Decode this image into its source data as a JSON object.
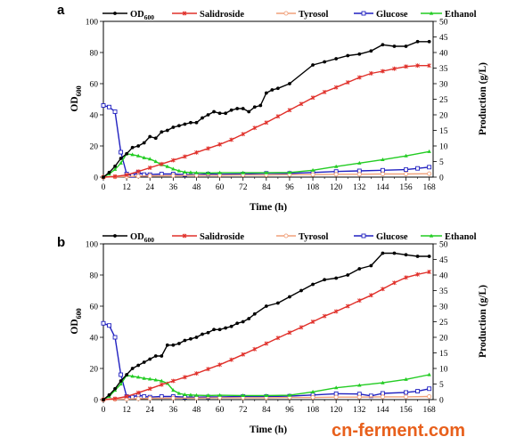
{
  "watermark": {
    "text": "cn-ferment.com",
    "color_main": "#e8601c"
  },
  "colors": {
    "OD": "#000000",
    "Salidroside": "#e0302a",
    "Tyrosol": "#f0a07a",
    "Glucose": "#2020c0",
    "Ethanol": "#22cc22"
  },
  "chart_data": [
    {
      "type": "line",
      "panel": "a",
      "xlabel": "Time (h)",
      "ylabel_left": "OD600",
      "ylabel_right": "Production (g/L)",
      "x_ticks": [
        "0",
        "12",
        "24",
        "36",
        "48",
        "60",
        "72",
        "84",
        "96",
        "108",
        "120",
        "132",
        "144",
        "156",
        "168"
      ],
      "y_left_ticks": [
        "0",
        "20",
        "40",
        "60",
        "80",
        "100"
      ],
      "y_right_ticks": [
        "0",
        "5",
        "10",
        "15",
        "20",
        "25",
        "30",
        "35",
        "40",
        "45",
        "50"
      ],
      "xlim": [
        0,
        170
      ],
      "ylim_left": [
        0,
        100
      ],
      "ylim_right": [
        0,
        50
      ],
      "legend_position": "top",
      "series": [
        {
          "name": "OD",
          "name_sub": "600",
          "axis": "left",
          "marker": "circle",
          "color": "#000000",
          "x": [
            0,
            3,
            6,
            9,
            12,
            15,
            18,
            21,
            24,
            27,
            30,
            33,
            36,
            39,
            42,
            45,
            48,
            51,
            54,
            57,
            60,
            63,
            66,
            69,
            72,
            75,
            78,
            81,
            84,
            87,
            90,
            96,
            108,
            114,
            120,
            126,
            132,
            138,
            144,
            150,
            156,
            162,
            168
          ],
          "y": [
            0,
            3,
            7,
            12,
            15,
            19,
            20,
            22,
            26,
            25,
            29,
            30,
            32,
            33,
            34,
            35,
            35,
            38,
            40,
            42,
            41,
            41,
            43,
            44,
            44,
            42,
            45,
            46,
            54,
            56,
            57,
            60,
            72,
            74,
            76,
            78,
            79,
            81,
            85,
            84,
            84,
            87,
            87
          ]
        },
        {
          "name": "Salidroside",
          "axis": "right",
          "marker": "star",
          "color": "#e0302a",
          "x": [
            0,
            6,
            12,
            18,
            24,
            30,
            36,
            42,
            48,
            54,
            60,
            66,
            72,
            78,
            84,
            90,
            96,
            102,
            108,
            114,
            120,
            126,
            132,
            138,
            144,
            150,
            156,
            162,
            168
          ],
          "y": [
            0,
            0.2,
            0.7,
            1.8,
            3.0,
            4.2,
            5.4,
            6.6,
            7.9,
            9.2,
            10.5,
            12.0,
            13.8,
            15.8,
            17.5,
            19.5,
            21.5,
            23.5,
            25.5,
            27.3,
            28.8,
            30.4,
            32.0,
            33.3,
            34.0,
            34.8,
            35.5,
            35.8,
            35.8
          ]
        },
        {
          "name": "Tyrosol",
          "axis": "right",
          "marker": "circle-open",
          "color": "#f0a07a",
          "x": [
            0,
            6,
            12,
            18,
            24,
            36,
            48,
            60,
            72,
            84,
            96,
            108,
            120,
            132,
            144,
            156,
            168
          ],
          "y": [
            0,
            0.1,
            0.2,
            0.3,
            0.4,
            0.5,
            0.6,
            0.6,
            0.7,
            0.7,
            0.8,
            0.8,
            0.9,
            0.9,
            1.0,
            1.0,
            1.1
          ]
        },
        {
          "name": "Glucose",
          "axis": "right",
          "marker": "square-open",
          "color": "#2020c0",
          "x": [
            0,
            3,
            6,
            9,
            12,
            15,
            18,
            21,
            24,
            30,
            36,
            42,
            48,
            54,
            60,
            72,
            84,
            96,
            108,
            120,
            132,
            144,
            156,
            162,
            168
          ],
          "y": [
            23,
            22.5,
            21,
            8,
            1,
            0.5,
            1.5,
            0.8,
            0.8,
            1.0,
            1.0,
            0.8,
            0.8,
            1.0,
            0.9,
            1.0,
            1.2,
            1.2,
            1.5,
            1.8,
            2.0,
            2.2,
            2.4,
            2.8,
            3.2
          ]
        },
        {
          "name": "Ethanol",
          "axis": "right",
          "marker": "triangle",
          "color": "#22cc22",
          "x": [
            0,
            3,
            6,
            9,
            12,
            15,
            18,
            21,
            24,
            27,
            30,
            33,
            36,
            39,
            42,
            45,
            48,
            54,
            60,
            72,
            84,
            96,
            108,
            120,
            132,
            144,
            156,
            168
          ],
          "y": [
            0,
            1,
            2.5,
            4.5,
            7.5,
            7.2,
            6.8,
            6.2,
            5.8,
            5.0,
            4.0,
            3.4,
            2.6,
            2.0,
            1.6,
            1.5,
            1.4,
            1.3,
            1.4,
            1.4,
            1.4,
            1.5,
            2.2,
            3.4,
            4.5,
            5.6,
            6.8,
            8.2
          ]
        }
      ]
    },
    {
      "type": "line",
      "panel": "b",
      "xlabel": "Time (h)",
      "ylabel_left": "OD600",
      "ylabel_right": "Production (g/L)",
      "x_ticks": [
        "0",
        "12",
        "24",
        "36",
        "48",
        "60",
        "72",
        "84",
        "96",
        "108",
        "120",
        "132",
        "144",
        "156",
        "168"
      ],
      "y_left_ticks": [
        "0",
        "20",
        "40",
        "60",
        "80",
        "100"
      ],
      "y_right_ticks": [
        "0",
        "5",
        "10",
        "15",
        "20",
        "25",
        "30",
        "35",
        "40",
        "45",
        "50"
      ],
      "xlim": [
        0,
        170
      ],
      "ylim_left": [
        0,
        100
      ],
      "ylim_right": [
        0,
        50
      ],
      "legend_position": "top",
      "series": [
        {
          "name": "OD",
          "name_sub": "600",
          "axis": "left",
          "marker": "circle",
          "color": "#000000",
          "x": [
            0,
            3,
            6,
            9,
            12,
            15,
            18,
            21,
            24,
            27,
            30,
            33,
            36,
            39,
            42,
            45,
            48,
            51,
            54,
            57,
            60,
            63,
            66,
            69,
            72,
            75,
            78,
            84,
            90,
            96,
            102,
            108,
            114,
            120,
            126,
            132,
            138,
            144,
            150,
            156,
            162,
            168
          ],
          "y": [
            0,
            3,
            7,
            12,
            16,
            20,
            22,
            24,
            26,
            28,
            28,
            35,
            35,
            36,
            38,
            39,
            40,
            42,
            43,
            45,
            45,
            46,
            47,
            49,
            50,
            52,
            55,
            60,
            62,
            66,
            70,
            74,
            77,
            78,
            80,
            84,
            86,
            94,
            94,
            93,
            92,
            92
          ]
        },
        {
          "name": "Salidroside",
          "axis": "right",
          "marker": "star",
          "color": "#e0302a",
          "x": [
            0,
            6,
            12,
            18,
            24,
            30,
            36,
            42,
            48,
            54,
            60,
            66,
            72,
            78,
            84,
            90,
            96,
            102,
            108,
            114,
            120,
            126,
            132,
            138,
            144,
            150,
            156,
            162,
            168
          ],
          "y": [
            0,
            0.3,
            1.0,
            2.2,
            3.5,
            4.8,
            6.0,
            7.2,
            8.4,
            9.8,
            11.2,
            12.8,
            14.5,
            16.2,
            18.0,
            19.8,
            21.5,
            23.2,
            25.0,
            26.8,
            28.3,
            30.0,
            31.8,
            33.5,
            35.5,
            37.5,
            39.2,
            40.2,
            41.0
          ]
        },
        {
          "name": "Tyrosol",
          "axis": "right",
          "marker": "circle-open",
          "color": "#f0a07a",
          "x": [
            0,
            6,
            12,
            18,
            24,
            36,
            48,
            60,
            72,
            84,
            96,
            108,
            120,
            132,
            144,
            156,
            168
          ],
          "y": [
            0,
            0.1,
            0.2,
            0.3,
            0.4,
            0.5,
            0.5,
            0.6,
            0.6,
            0.6,
            0.7,
            0.7,
            0.8,
            0.8,
            0.9,
            0.9,
            1.0
          ]
        },
        {
          "name": "Glucose",
          "axis": "right",
          "marker": "square-open",
          "color": "#2020c0",
          "x": [
            0,
            3,
            6,
            9,
            12,
            15,
            18,
            21,
            24,
            30,
            36,
            42,
            48,
            54,
            60,
            72,
            84,
            96,
            108,
            120,
            132,
            138,
            144,
            156,
            162,
            168
          ],
          "y": [
            24.5,
            23.8,
            20,
            8,
            1,
            0.8,
            1.5,
            1.0,
            0.8,
            1.0,
            1.0,
            0.8,
            0.8,
            0.9,
            0.9,
            1.0,
            1.0,
            1.1,
            1.5,
            1.9,
            1.8,
            1.2,
            2.0,
            2.3,
            2.7,
            3.5
          ]
        },
        {
          "name": "Ethanol",
          "axis": "right",
          "marker": "triangle",
          "color": "#22cc22",
          "x": [
            0,
            3,
            6,
            9,
            12,
            15,
            18,
            21,
            24,
            27,
            30,
            33,
            36,
            39,
            42,
            45,
            48,
            54,
            60,
            72,
            84,
            96,
            108,
            120,
            132,
            144,
            156,
            168
          ],
          "y": [
            0,
            1,
            3,
            5,
            7.8,
            7.5,
            7.2,
            6.8,
            6.6,
            6.3,
            6.0,
            5.2,
            3.0,
            2.0,
            1.6,
            1.5,
            1.4,
            1.3,
            1.4,
            1.3,
            1.3,
            1.4,
            2.5,
            3.8,
            4.6,
            5.4,
            6.5,
            8.0
          ]
        }
      ]
    }
  ]
}
